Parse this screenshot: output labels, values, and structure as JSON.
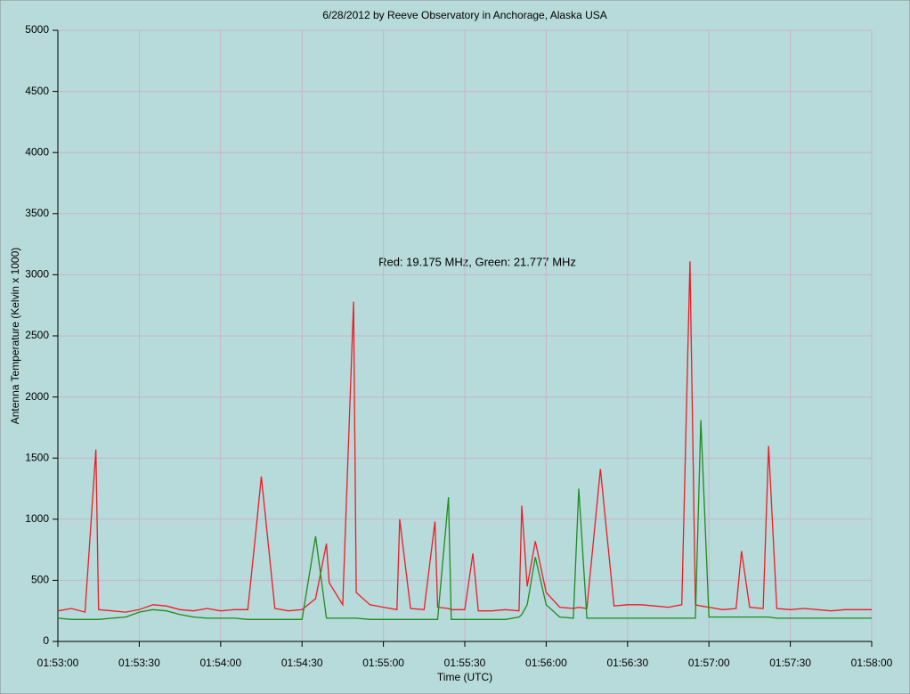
{
  "chart_data": {
    "type": "line",
    "title": "6/28/2012  by  Reeve Observatory  in  Anchorage, Alaska  USA",
    "annotation": "Red: 19.175 MHz, Green: 21.777 MHz",
    "xlabel": "Time (UTC)",
    "ylabel": "Antenna Temperature (Kelvin x 1000)",
    "x": [
      "01:53:00",
      "01:53:05",
      "01:53:10",
      "01:53:14",
      "01:53:15",
      "01:53:20",
      "01:53:25",
      "01:53:30",
      "01:53:35",
      "01:53:40",
      "01:53:45",
      "01:53:50",
      "01:53:55",
      "01:54:00",
      "01:54:05",
      "01:54:10",
      "01:54:13",
      "01:54:15",
      "01:54:20",
      "01:54:25",
      "01:54:30",
      "01:54:35",
      "01:54:39",
      "01:54:40",
      "01:54:45",
      "01:54:49",
      "01:54:50",
      "01:54:55",
      "01:55:00",
      "01:55:05",
      "01:55:06",
      "01:55:10",
      "01:55:15",
      "01:55:19",
      "01:55:20",
      "01:55:24",
      "01:55:25",
      "01:55:30",
      "01:55:33",
      "01:55:35",
      "01:55:40",
      "01:55:45",
      "01:55:50",
      "01:55:51",
      "01:55:53",
      "01:55:56",
      "01:56:00",
      "01:56:05",
      "01:56:10",
      "01:56:12",
      "01:56:15",
      "01:56:20",
      "01:56:25",
      "01:56:30",
      "01:56:35",
      "01:56:40",
      "01:56:45",
      "01:56:50",
      "01:56:53",
      "01:56:55",
      "01:56:57",
      "01:57:00",
      "01:57:05",
      "01:57:10",
      "01:57:12",
      "01:57:15",
      "01:57:20",
      "01:57:22",
      "01:57:25",
      "01:57:30",
      "01:57:35",
      "01:57:40",
      "01:57:45",
      "01:57:50",
      "01:57:55",
      "01:58:00"
    ],
    "series": [
      {
        "color": "#ee1c25",
        "values": [
          250,
          270,
          240,
          1570,
          260,
          250,
          240,
          260,
          300,
          290,
          260,
          250,
          270,
          250,
          260,
          260,
          900,
          1350,
          270,
          250,
          260,
          350,
          800,
          480,
          300,
          2780,
          400,
          300,
          280,
          260,
          1000,
          270,
          260,
          980,
          280,
          270,
          260,
          260,
          720,
          250,
          250,
          260,
          250,
          1110,
          450,
          820,
          400,
          280,
          270,
          280,
          270,
          1410,
          290,
          300,
          300,
          290,
          280,
          300,
          3110,
          300,
          290,
          280,
          260,
          270,
          740,
          280,
          270,
          1600,
          270,
          260,
          270,
          260,
          250,
          260,
          260,
          260
        ]
      },
      {
        "color": "#1e8c1e",
        "values": [
          190,
          180,
          180,
          180,
          180,
          190,
          200,
          240,
          260,
          250,
          220,
          200,
          190,
          190,
          190,
          180,
          180,
          180,
          180,
          180,
          180,
          860,
          190,
          190,
          190,
          190,
          190,
          180,
          180,
          180,
          180,
          180,
          180,
          180,
          180,
          1180,
          180,
          180,
          180,
          180,
          180,
          180,
          200,
          220,
          300,
          690,
          300,
          200,
          190,
          1250,
          190,
          190,
          190,
          190,
          190,
          190,
          190,
          190,
          190,
          190,
          1810,
          200,
          200,
          200,
          200,
          200,
          200,
          200,
          190,
          190,
          190,
          190,
          190,
          190,
          190,
          190
        ]
      }
    ],
    "xlim": [
      "01:53:00",
      "01:58:00"
    ],
    "xticks": [
      "01:53:00",
      "01:53:30",
      "01:54:00",
      "01:54:30",
      "01:55:00",
      "01:55:30",
      "01:56:00",
      "01:56:30",
      "01:57:00",
      "01:57:30",
      "01:58:00"
    ],
    "ylim": [
      0,
      5000
    ],
    "yticks": [
      0,
      500,
      1000,
      1500,
      2000,
      2500,
      3000,
      3500,
      4000,
      4500,
      5000
    ],
    "grid": true
  }
}
